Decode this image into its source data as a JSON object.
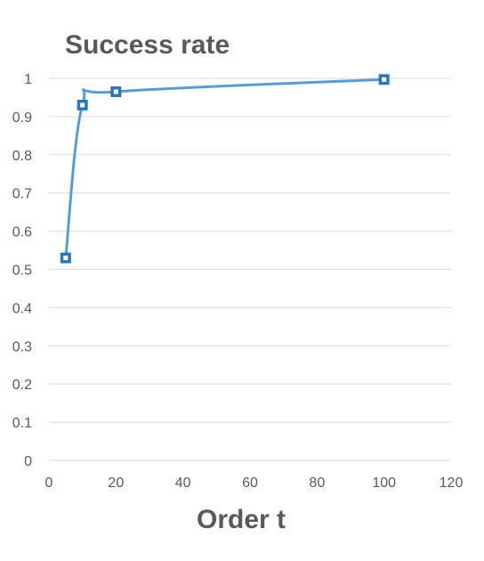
{
  "chart_data": {
    "type": "scatter",
    "title": "Success rate",
    "xlabel": "Order t",
    "ylabel": "",
    "xlim": [
      0,
      120
    ],
    "ylim": [
      0,
      1
    ],
    "xticks": [
      "0",
      "20",
      "40",
      "60",
      "80",
      "100",
      "120"
    ],
    "yticks": [
      "0",
      "0.1",
      "0.2",
      "0.3",
      "0.4",
      "0.5",
      "0.6",
      "0.7",
      "0.8",
      "0.9",
      "1"
    ],
    "grid": "horizontal",
    "legend": "none",
    "line_style": "smoothed line with square markers",
    "series": [
      {
        "color": "#5b9bd5",
        "marker_color": "#2e75b6",
        "points": [
          {
            "x": 5,
            "y": 0.53
          },
          {
            "x": 10,
            "y": 0.93
          },
          {
            "x": 20,
            "y": 0.965
          },
          {
            "x": 100,
            "y": 0.997
          }
        ]
      }
    ]
  }
}
